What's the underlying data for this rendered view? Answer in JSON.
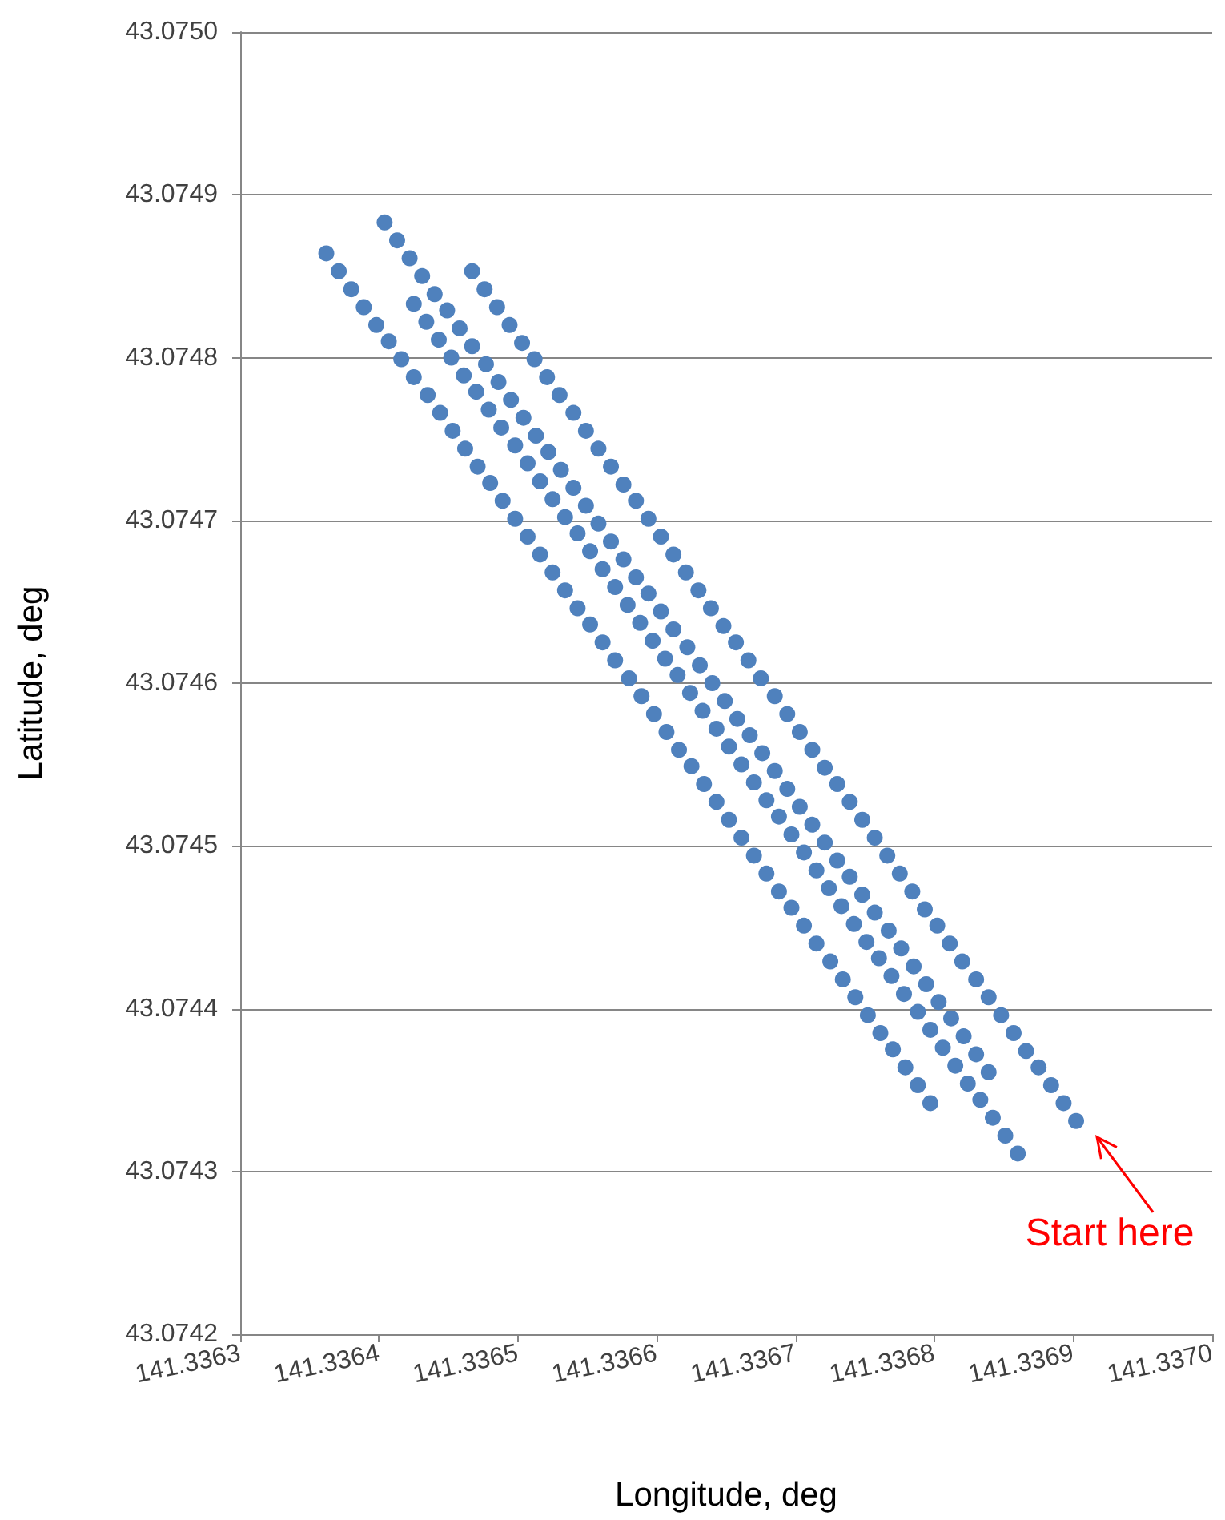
{
  "chart_data": {
    "type": "scatter",
    "xlabel": "Longitude, deg",
    "ylabel": "Latitude, deg",
    "xlim": [
      141.3363,
      141.337
    ],
    "ylim": [
      43.0742,
      43.075
    ],
    "xticks": [
      141.3363,
      141.3364,
      141.3365,
      141.3366,
      141.3367,
      141.3368,
      141.3369,
      {
        "value": 141.337,
        "label": "141.3370"
      }
    ],
    "yticks": [
      43.0742,
      43.0743,
      43.0744,
      43.0745,
      43.0746,
      43.0747,
      43.0748,
      43.0749,
      {
        "value": 43.075,
        "label": "43.0750"
      }
    ],
    "grid": "y",
    "marker": "circle",
    "annotations": [
      {
        "text": "Start here",
        "x": 141.336902,
        "y": 43.074331
      }
    ],
    "series": [
      {
        "color": "#4f81bd",
        "x": [
          141.336362,
          141.336371,
          141.33638,
          141.336389,
          141.336398,
          141.336407,
          141.336416,
          141.336425,
          141.336435,
          141.336444,
          141.336453,
          141.336462,
          141.336471,
          141.33648,
          141.336489,
          141.336498,
          141.336507,
          141.336516,
          141.336525,
          141.336534,
          141.336543,
          141.336552,
          141.336561,
          141.33657,
          141.33658,
          141.336589,
          141.336598,
          141.336607,
          141.336616,
          141.336625,
          141.336634,
          141.336643,
          141.336652,
          141.336661,
          141.33667,
          141.336679,
          141.336688,
          141.336697,
          141.336706,
          141.336715,
          141.336725,
          141.336734,
          141.336743,
          141.336752,
          141.336761,
          141.33677,
          141.336779,
          141.336788,
          141.336797
        ],
        "values": [
          43.074864,
          43.074853,
          43.074842,
          43.074831,
          43.07482,
          43.07481,
          43.074799,
          43.074788,
          43.074777,
          43.074766,
          43.074755,
          43.074744,
          43.074733,
          43.074723,
          43.074712,
          43.074701,
          43.07469,
          43.074679,
          43.074668,
          43.074657,
          43.074646,
          43.074636,
          43.074625,
          43.074614,
          43.074603,
          43.074592,
          43.074581,
          43.07457,
          43.074559,
          43.074549,
          43.074538,
          43.074527,
          43.074516,
          43.074505,
          43.074494,
          43.074483,
          43.074472,
          43.074462,
          43.074451,
          43.07444,
          43.074429,
          43.074418,
          43.074407,
          43.074396,
          43.074385,
          43.074375,
          43.074364,
          43.074353,
          43.074342
        ]
      },
      {
        "color": "#4f81bd",
        "x": [
          141.336404,
          141.336413,
          141.336422,
          141.336431,
          141.33644,
          141.336449,
          141.336458,
          141.336467,
          141.336477,
          141.336486,
          141.336495,
          141.336504,
          141.336513,
          141.336522,
          141.336531,
          141.33654,
          141.336549,
          141.336558,
          141.336567,
          141.336576,
          141.336585,
          141.336594,
          141.336603,
          141.336612,
          141.336622,
          141.336631,
          141.33664,
          141.336649,
          141.336658,
          141.336667,
          141.336676,
          141.336685,
          141.336694,
          141.336703,
          141.336712,
          141.336721,
          141.33673,
          141.336739,
          141.336748,
          141.336757,
          141.336767,
          141.336776,
          141.336785,
          141.336794,
          141.336803,
          141.336812,
          141.336821,
          141.33683,
          141.336839
        ],
        "values": [
          43.074883,
          43.074872,
          43.074861,
          43.07485,
          43.074839,
          43.074829,
          43.074818,
          43.074807,
          43.074796,
          43.074785,
          43.074774,
          43.074763,
          43.074752,
          43.074742,
          43.074731,
          43.07472,
          43.074709,
          43.074698,
          43.074687,
          43.074676,
          43.074665,
          43.074655,
          43.074644,
          43.074633,
          43.074622,
          43.074611,
          43.0746,
          43.074589,
          43.074578,
          43.074568,
          43.074557,
          43.074546,
          43.074535,
          43.074524,
          43.074513,
          43.074502,
          43.074491,
          43.074481,
          43.07447,
          43.074459,
          43.074448,
          43.074437,
          43.074426,
          43.074415,
          43.074404,
          43.074394,
          43.074383,
          43.074372,
          43.074361
        ]
      },
      {
        "color": "#4f81bd",
        "x": [
          141.336425,
          141.336434,
          141.336443,
          141.336452,
          141.336461,
          141.33647,
          141.336479,
          141.336488,
          141.336498,
          141.336507,
          141.336516,
          141.336525,
          141.336534,
          141.336543,
          141.336552,
          141.336561,
          141.33657,
          141.336579,
          141.336588,
          141.336597,
          141.336606,
          141.336615,
          141.336624,
          141.336633,
          141.336643,
          141.336652,
          141.336661,
          141.33667,
          141.336679,
          141.336688,
          141.336697,
          141.336706,
          141.336715,
          141.336724,
          141.336733,
          141.336742,
          141.336751,
          141.33676,
          141.336769,
          141.336778,
          141.336788,
          141.336797,
          141.336806,
          141.336815,
          141.336824,
          141.336833,
          141.336842,
          141.336851,
          141.33686
        ],
        "values": [
          43.074833,
          43.074822,
          43.074811,
          43.0748,
          43.074789,
          43.074779,
          43.074768,
          43.074757,
          43.074746,
          43.074735,
          43.074724,
          43.074713,
          43.074702,
          43.074692,
          43.074681,
          43.07467,
          43.074659,
          43.074648,
          43.074637,
          43.074626,
          43.074615,
          43.074605,
          43.074594,
          43.074583,
          43.074572,
          43.074561,
          43.07455,
          43.074539,
          43.074528,
          43.074518,
          43.074507,
          43.074496,
          43.074485,
          43.074474,
          43.074463,
          43.074452,
          43.074441,
          43.074431,
          43.07442,
          43.074409,
          43.074398,
          43.074387,
          43.074376,
          43.074365,
          43.074354,
          43.074344,
          43.074333,
          43.074322,
          43.074311
        ]
      },
      {
        "color": "#4f81bd",
        "x": [
          141.336467,
          141.336476,
          141.336485,
          141.336494,
          141.336503,
          141.336512,
          141.336521,
          141.33653,
          141.33654,
          141.336549,
          141.336558,
          141.336567,
          141.336576,
          141.336585,
          141.336594,
          141.336603,
          141.336612,
          141.336621,
          141.33663,
          141.336639,
          141.336648,
          141.336657,
          141.336666,
          141.336675,
          141.336685,
          141.336694,
          141.336703,
          141.336712,
          141.336721,
          141.33673,
          141.336739,
          141.336748,
          141.336757,
          141.336766,
          141.336775,
          141.336784,
          141.336793,
          141.336802,
          141.336811,
          141.33682,
          141.33683,
          141.336839,
          141.336848,
          141.336857,
          141.336866,
          141.336875,
          141.336884,
          141.336893,
          141.336902
        ],
        "values": [
          43.074853,
          43.074842,
          43.074831,
          43.07482,
          43.074809,
          43.074799,
          43.074788,
          43.074777,
          43.074766,
          43.074755,
          43.074744,
          43.074733,
          43.074722,
          43.074712,
          43.074701,
          43.07469,
          43.074679,
          43.074668,
          43.074657,
          43.074646,
          43.074635,
          43.074625,
          43.074614,
          43.074603,
          43.074592,
          43.074581,
          43.07457,
          43.074559,
          43.074548,
          43.074538,
          43.074527,
          43.074516,
          43.074505,
          43.074494,
          43.074483,
          43.074472,
          43.074461,
          43.074451,
          43.07444,
          43.074429,
          43.074418,
          43.074407,
          43.074396,
          43.074385,
          43.074374,
          43.074364,
          43.074353,
          43.074342,
          43.074331
        ]
      }
    ]
  }
}
